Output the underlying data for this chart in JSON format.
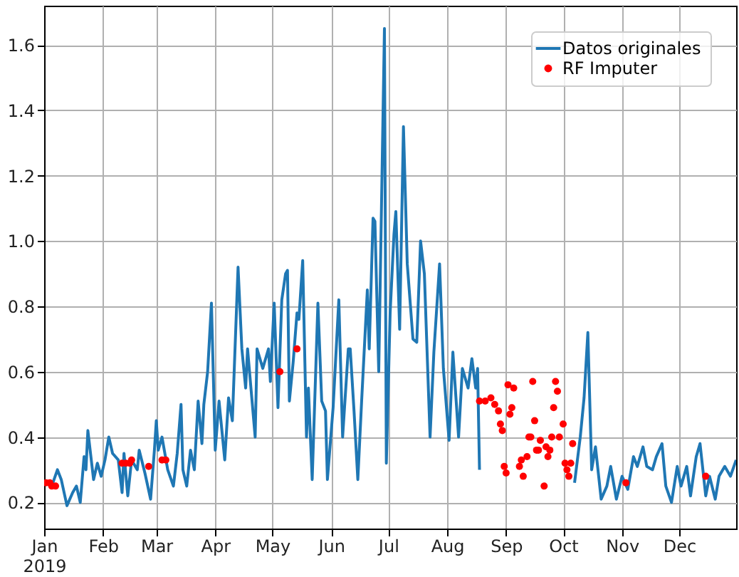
{
  "chart_data": {
    "type": "line",
    "xlim": [
      "2019-01-01",
      "2019-12-31"
    ],
    "xticks": [
      {
        "value": "2019-01-01",
        "label": "Jan\n2019"
      },
      {
        "value": "2019-02-01",
        "label": "Feb"
      },
      {
        "value": "2019-03-01",
        "label": "Mar"
      },
      {
        "value": "2019-04-01",
        "label": "Apr"
      },
      {
        "value": "2019-05-01",
        "label": "May"
      },
      {
        "value": "2019-06-01",
        "label": "Jun"
      },
      {
        "value": "2019-07-01",
        "label": "Jul"
      },
      {
        "value": "2019-08-01",
        "label": "Aug"
      },
      {
        "value": "2019-09-01",
        "label": "Sep"
      },
      {
        "value": "2019-10-01",
        "label": "Oct"
      },
      {
        "value": "2019-11-01",
        "label": "Nov"
      },
      {
        "value": "2019-12-01",
        "label": "Dec"
      }
    ],
    "ylim": [
      0.12,
      1.72
    ],
    "yticks": [
      0.2,
      0.4,
      0.6,
      0.8,
      {
        "value": 1,
        "label": "1.0"
      },
      1.2,
      1.4,
      1.6
    ],
    "grid": true,
    "legend": "top right",
    "series": [
      {
        "name": "Datos originales",
        "type": "line",
        "color": "#1f77b4",
        "x": [
          "2019-01-01",
          "2019-01-05",
          "2019-01-08",
          "2019-01-10",
          "2019-01-13",
          "2019-01-16",
          "2019-01-18",
          "2019-01-20",
          "2019-01-22",
          "2019-01-23",
          "2019-01-24",
          "2019-01-27",
          "2019-01-29",
          "2019-01-31",
          "2019-02-02",
          "2019-02-04",
          "2019-02-06",
          "2019-02-09",
          "2019-02-11",
          "2019-02-12",
          "2019-02-14",
          "2019-02-16",
          "2019-02-19",
          "2019-02-20",
          "2019-02-23",
          "2019-02-26",
          "2019-02-28",
          "2019-03-01",
          "2019-03-02",
          "2019-03-04",
          "2019-03-07",
          "2019-03-10",
          "2019-03-12",
          "2019-03-14",
          "2019-03-15",
          "2019-03-17",
          "2019-03-19",
          "2019-03-21",
          "2019-03-23",
          "2019-03-25",
          "2019-03-26",
          "2019-03-28",
          "2019-03-30",
          "2019-04-01",
          "2019-04-03",
          "2019-04-06",
          "2019-04-08",
          "2019-04-10",
          "2019-04-13",
          "2019-04-15",
          "2019-04-17",
          "2019-04-18",
          "2019-04-22",
          "2019-04-23",
          "2019-04-26",
          "2019-04-29",
          "2019-04-30",
          "2019-05-02",
          "2019-05-04",
          "2019-05-06",
          "2019-05-08",
          "2019-05-09",
          "2019-05-10",
          "2019-05-12",
          "2019-05-14",
          "2019-05-15",
          "2019-05-17",
          "2019-05-19",
          "2019-05-20",
          "2019-05-22",
          "2019-05-25",
          "2019-05-27",
          "2019-05-29",
          "2019-05-30",
          "2019-06-02",
          "2019-06-05",
          "2019-06-07",
          "2019-06-10",
          "2019-06-11",
          "2019-06-13",
          "2019-06-15",
          "2019-06-17",
          "2019-06-20",
          "2019-06-21",
          "2019-06-23",
          "2019-06-24",
          "2019-06-26",
          "2019-06-29",
          "2019-06-30",
          "2019-07-02",
          "2019-07-04",
          "2019-07-05",
          "2019-07-07",
          "2019-07-09",
          "2019-07-11",
          "2019-07-14",
          "2019-07-16",
          "2019-07-18",
          "2019-07-20",
          "2019-07-23",
          "2019-07-25",
          "2019-07-28",
          "2019-07-30",
          "2019-08-02",
          "2019-08-04",
          "2019-08-07",
          "2019-08-09",
          "2019-08-12",
          "2019-08-14",
          "2019-08-16",
          "2019-08-17",
          "2019-08-18",
          "2019-08-21",
          "2019-10-07",
          "2019-10-10",
          "2019-10-12",
          "2019-10-14",
          "2019-10-16",
          "2019-10-18",
          "2019-10-21",
          "2019-10-24",
          "2019-10-26",
          "2019-10-29",
          "2019-11-01",
          "2019-11-04",
          "2019-11-07",
          "2019-11-09",
          "2019-11-12",
          "2019-11-14",
          "2019-11-17",
          "2019-11-19",
          "2019-11-22",
          "2019-11-24",
          "2019-11-27",
          "2019-11-30",
          "2019-12-02",
          "2019-12-05",
          "2019-12-07",
          "2019-12-10",
          "2019-12-12",
          "2019-12-15",
          "2019-12-17",
          "2019-12-20",
          "2019-12-22",
          "2019-12-25",
          "2019-12-28",
          "2019-12-31"
        ],
        "values": [
          0.26,
          0.25,
          0.3,
          0.27,
          0.19,
          0.23,
          0.25,
          0.2,
          0.34,
          0.3,
          0.42,
          0.27,
          0.32,
          0.28,
          0.33,
          0.4,
          0.35,
          0.33,
          0.23,
          0.35,
          0.22,
          0.33,
          0.3,
          0.36,
          0.29,
          0.21,
          0.36,
          0.45,
          0.36,
          0.4,
          0.3,
          0.25,
          0.35,
          0.5,
          0.3,
          0.25,
          0.36,
          0.3,
          0.51,
          0.38,
          0.5,
          0.6,
          0.81,
          0.36,
          0.51,
          0.33,
          0.52,
          0.45,
          0.92,
          0.67,
          0.55,
          0.67,
          0.4,
          0.67,
          0.61,
          0.67,
          0.57,
          0.81,
          0.49,
          0.82,
          0.9,
          0.91,
          0.51,
          0.63,
          0.78,
          0.76,
          0.94,
          0.4,
          0.55,
          0.27,
          0.81,
          0.51,
          0.48,
          0.27,
          0.49,
          0.82,
          0.4,
          0.67,
          0.67,
          0.48,
          0.27,
          0.51,
          0.85,
          0.67,
          1.07,
          1.06,
          0.6,
          1.65,
          0.32,
          0.78,
          1.02,
          1.09,
          0.73,
          1.35,
          0.93,
          0.7,
          0.69,
          1.0,
          0.9,
          0.4,
          0.66,
          0.93,
          0.61,
          0.39,
          0.66,
          0.4,
          0.61,
          0.55,
          0.64,
          0.55,
          0.61,
          0.3,
          null,
          0.26,
          0.4,
          0.52,
          0.72,
          0.3,
          0.37,
          0.21,
          0.25,
          0.31,
          0.21,
          0.28,
          0.24,
          0.34,
          0.31,
          0.37,
          0.31,
          0.3,
          0.34,
          0.38,
          0.25,
          0.2,
          0.31,
          0.25,
          0.31,
          0.22,
          0.34,
          0.38,
          0.22,
          0.28,
          0.21,
          0.28,
          0.31,
          0.28,
          0.33
        ]
      },
      {
        "name": "RF Imputer",
        "type": "scatter",
        "color": "#ff0000",
        "marker": "circle",
        "x": [
          "2019-01-02",
          "2019-01-04",
          "2019-01-05",
          "2019-01-07",
          "2019-02-11",
          "2019-02-13",
          "2019-02-15",
          "2019-02-16",
          "2019-02-25",
          "2019-03-04",
          "2019-03-06",
          "2019-05-05",
          "2019-05-14",
          "2019-08-18",
          "2019-08-21",
          "2019-08-24",
          "2019-08-26",
          "2019-08-28",
          "2019-08-29",
          "2019-08-30",
          "2019-08-31",
          "2019-09-01",
          "2019-09-02",
          "2019-09-03",
          "2019-09-04",
          "2019-09-05",
          "2019-09-08",
          "2019-09-09",
          "2019-09-10",
          "2019-09-12",
          "2019-09-13",
          "2019-09-14",
          "2019-09-15",
          "2019-09-16",
          "2019-09-17",
          "2019-09-18",
          "2019-09-19",
          "2019-09-21",
          "2019-09-22",
          "2019-09-23",
          "2019-09-24",
          "2019-09-25",
          "2019-09-26",
          "2019-09-27",
          "2019-09-28",
          "2019-09-29",
          "2019-10-01",
          "2019-10-02",
          "2019-10-03",
          "2019-10-04",
          "2019-10-05",
          "2019-10-06",
          "2019-11-03",
          "2019-12-15"
        ],
        "values": [
          0.26,
          0.26,
          0.25,
          0.25,
          0.32,
          0.32,
          0.32,
          0.33,
          0.31,
          0.33,
          0.33,
          0.6,
          0.67,
          0.51,
          0.51,
          0.52,
          0.5,
          0.48,
          0.44,
          0.42,
          0.31,
          0.29,
          0.56,
          0.47,
          0.49,
          0.55,
          0.31,
          0.33,
          0.28,
          0.34,
          0.4,
          0.4,
          0.57,
          0.45,
          0.36,
          0.36,
          0.39,
          0.25,
          0.37,
          0.34,
          0.36,
          0.4,
          0.49,
          0.57,
          0.54,
          0.4,
          0.44,
          0.32,
          0.3,
          0.28,
          0.32,
          0.38,
          0.26,
          0.28
        ]
      }
    ]
  }
}
